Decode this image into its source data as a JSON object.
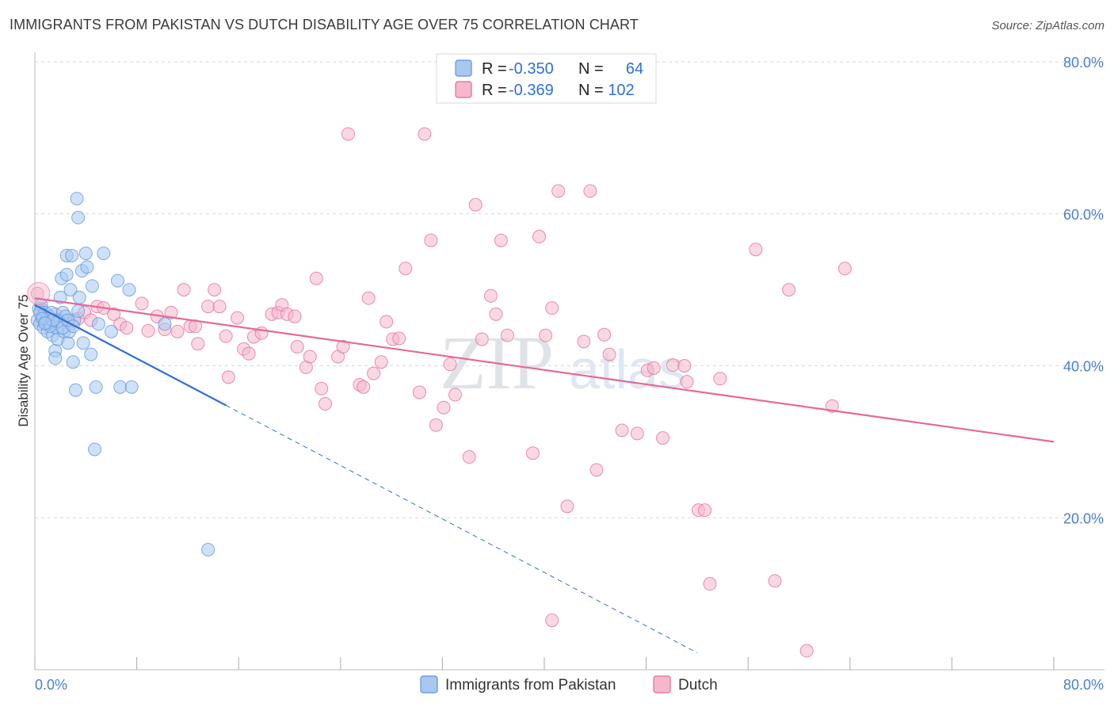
{
  "header": {
    "title": "IMMIGRANTS FROM PAKISTAN VS DUTCH DISABILITY AGE OVER 75 CORRELATION CHART",
    "source": "Source: ZipAtlas.com"
  },
  "watermark": {
    "zip": "ZIP",
    "atlas": "atlas"
  },
  "legend_top": {
    "rows": [
      {
        "r_label": "R =",
        "r_value": "-0.350",
        "n_label": "N =",
        "n_value": "64",
        "color": "#a8c8f0"
      },
      {
        "r_label": "R =",
        "r_value": "-0.369",
        "n_label": "N =",
        "n_value": "102",
        "color": "#f5b8cb"
      }
    ]
  },
  "chart_data": {
    "type": "scatter",
    "title": "IMMIGRANTS FROM PAKISTAN VS DUTCH DISABILITY AGE OVER 75 CORRELATION CHART",
    "xlabel": "",
    "ylabel": "Disability Age Over 75",
    "xlim": [
      0,
      80
    ],
    "ylim": [
      0,
      80
    ],
    "x_tick_labels": [
      "0.0%",
      "80.0%"
    ],
    "y_ticks": [
      20,
      40,
      60,
      80
    ],
    "y_tick_labels": [
      "20.0%",
      "40.0%",
      "60.0%",
      "80.0%"
    ],
    "grid": true,
    "legend_position": "bottom",
    "series": [
      {
        "name": "Immigrants from Pakistan",
        "color": "#5b93dd",
        "fill": "#a8c8f0",
        "regression": {
          "x0": 0,
          "y0": 48.0,
          "x1": 15,
          "y1": 34.8,
          "dashed_to_x": 52
        },
        "points": [
          [
            0.2,
            46.0
          ],
          [
            0.3,
            47.5
          ],
          [
            0.4,
            45.5
          ],
          [
            0.5,
            48.0
          ],
          [
            0.6,
            46.5
          ],
          [
            0.7,
            45.0
          ],
          [
            0.8,
            47.0
          ],
          [
            0.9,
            46.0
          ],
          [
            1.0,
            44.5
          ],
          [
            1.1,
            46.5
          ],
          [
            1.2,
            45.5
          ],
          [
            1.3,
            47.0
          ],
          [
            1.4,
            44.0
          ],
          [
            1.5,
            46.0
          ],
          [
            1.6,
            42.0
          ],
          [
            1.6,
            41.0
          ],
          [
            1.7,
            45.0
          ],
          [
            1.8,
            43.5
          ],
          [
            1.9,
            46.0
          ],
          [
            2.0,
            49.0
          ],
          [
            2.1,
            51.5
          ],
          [
            2.2,
            47.0
          ],
          [
            2.3,
            44.5
          ],
          [
            2.4,
            46.5
          ],
          [
            2.5,
            52.0
          ],
          [
            2.5,
            54.5
          ],
          [
            2.6,
            43.0
          ],
          [
            2.7,
            44.5
          ],
          [
            2.8,
            50.0
          ],
          [
            2.9,
            54.5
          ],
          [
            3.0,
            40.5
          ],
          [
            3.1,
            46.0
          ],
          [
            3.2,
            36.8
          ],
          [
            3.3,
            62.0
          ],
          [
            3.4,
            59.5
          ],
          [
            3.5,
            49.0
          ],
          [
            3.7,
            52.5
          ],
          [
            3.8,
            43.0
          ],
          [
            4.0,
            54.8
          ],
          [
            4.1,
            53.0
          ],
          [
            4.4,
            41.5
          ],
          [
            4.5,
            50.5
          ],
          [
            4.8,
            37.2
          ],
          [
            5.0,
            45.5
          ],
          [
            5.4,
            54.8
          ],
          [
            6.0,
            44.5
          ],
          [
            6.5,
            51.2
          ],
          [
            6.7,
            37.2
          ],
          [
            7.4,
            50.0
          ],
          [
            7.6,
            37.2
          ],
          [
            4.7,
            29.0
          ],
          [
            10.2,
            45.5
          ],
          [
            13.6,
            15.8
          ],
          [
            1.0,
            46.2
          ],
          [
            1.2,
            45.2
          ],
          [
            0.4,
            47.0
          ],
          [
            0.6,
            46.2
          ],
          [
            1.8,
            45.8
          ],
          [
            2.2,
            45.0
          ],
          [
            2.6,
            46.0
          ],
          [
            3.0,
            45.2
          ],
          [
            3.4,
            47.2
          ],
          [
            1.4,
            46.0
          ],
          [
            0.8,
            45.6
          ]
        ]
      },
      {
        "name": "Dutch",
        "color": "#e36a97",
        "fill": "#f5b8cb",
        "regression": {
          "x0": 0,
          "y0": 48.9,
          "x1": 80,
          "y1": 30.0
        },
        "points": [
          [
            0.2,
            49.5
          ],
          [
            0.5,
            47.5
          ],
          [
            0.8,
            46.5
          ],
          [
            1.2,
            45.5
          ],
          [
            1.6,
            46.8
          ],
          [
            2.2,
            46.0
          ],
          [
            2.8,
            45.5
          ],
          [
            3.4,
            46.2
          ],
          [
            3.9,
            47.0
          ],
          [
            4.4,
            46.0
          ],
          [
            4.9,
            47.8
          ],
          [
            5.4,
            47.6
          ],
          [
            6.2,
            46.8
          ],
          [
            6.7,
            45.5
          ],
          [
            7.2,
            45.0
          ],
          [
            8.4,
            48.2
          ],
          [
            8.9,
            44.6
          ],
          [
            9.6,
            46.5
          ],
          [
            10.2,
            44.8
          ],
          [
            10.7,
            47.0
          ],
          [
            11.2,
            44.5
          ],
          [
            11.7,
            50.0
          ],
          [
            12.2,
            45.2
          ],
          [
            12.6,
            45.2
          ],
          [
            12.8,
            42.9
          ],
          [
            13.6,
            47.8
          ],
          [
            14.1,
            50.0
          ],
          [
            14.5,
            47.8
          ],
          [
            15.0,
            43.9
          ],
          [
            15.2,
            38.5
          ],
          [
            15.9,
            46.3
          ],
          [
            16.4,
            42.2
          ],
          [
            16.8,
            41.6
          ],
          [
            17.2,
            43.8
          ],
          [
            17.8,
            44.3
          ],
          [
            18.6,
            46.8
          ],
          [
            19.1,
            47.0
          ],
          [
            19.4,
            48.0
          ],
          [
            19.8,
            46.8
          ],
          [
            20.4,
            46.5
          ],
          [
            20.6,
            42.5
          ],
          [
            21.3,
            39.8
          ],
          [
            21.6,
            41.2
          ],
          [
            22.1,
            51.5
          ],
          [
            22.5,
            37.0
          ],
          [
            22.8,
            35.0
          ],
          [
            23.8,
            41.2
          ],
          [
            24.2,
            42.5
          ],
          [
            24.6,
            70.5
          ],
          [
            25.5,
            37.5
          ],
          [
            25.8,
            37.2
          ],
          [
            26.2,
            48.9
          ],
          [
            26.6,
            39.0
          ],
          [
            27.2,
            40.5
          ],
          [
            27.6,
            45.8
          ],
          [
            28.1,
            43.5
          ],
          [
            28.6,
            43.6
          ],
          [
            29.1,
            52.8
          ],
          [
            30.2,
            36.5
          ],
          [
            30.6,
            70.5
          ],
          [
            31.1,
            56.5
          ],
          [
            31.5,
            32.2
          ],
          [
            32.1,
            34.5
          ],
          [
            32.6,
            40.2
          ],
          [
            33.0,
            36.2
          ],
          [
            34.1,
            28.0
          ],
          [
            34.6,
            61.2
          ],
          [
            35.1,
            43.5
          ],
          [
            35.8,
            49.2
          ],
          [
            36.2,
            46.8
          ],
          [
            36.6,
            56.5
          ],
          [
            37.1,
            44.0
          ],
          [
            39.1,
            28.5
          ],
          [
            39.6,
            57.0
          ],
          [
            40.1,
            44.0
          ],
          [
            40.6,
            47.6
          ],
          [
            41.1,
            63.0
          ],
          [
            41.8,
            21.5
          ],
          [
            43.1,
            43.2
          ],
          [
            43.6,
            63.0
          ],
          [
            44.1,
            26.3
          ],
          [
            44.7,
            44.1
          ],
          [
            45.1,
            41.5
          ],
          [
            46.1,
            31.5
          ],
          [
            47.3,
            31.1
          ],
          [
            48.1,
            39.4
          ],
          [
            48.6,
            39.7
          ],
          [
            49.3,
            30.5
          ],
          [
            50.1,
            40.1
          ],
          [
            51.0,
            40.0
          ],
          [
            51.2,
            37.9
          ],
          [
            52.1,
            21.0
          ],
          [
            52.6,
            21.0
          ],
          [
            53.0,
            11.3
          ],
          [
            53.8,
            38.3
          ],
          [
            56.6,
            55.3
          ],
          [
            58.1,
            11.7
          ],
          [
            59.2,
            50.0
          ],
          [
            60.6,
            2.5
          ],
          [
            62.6,
            34.7
          ],
          [
            63.6,
            52.8
          ],
          [
            40.6,
            6.5
          ]
        ]
      }
    ]
  },
  "legend_bottom": {
    "items": [
      {
        "label": "Immigrants from Pakistan",
        "color": "#a8c8f0"
      },
      {
        "label": "Dutch",
        "color": "#f5b8cb"
      }
    ]
  }
}
